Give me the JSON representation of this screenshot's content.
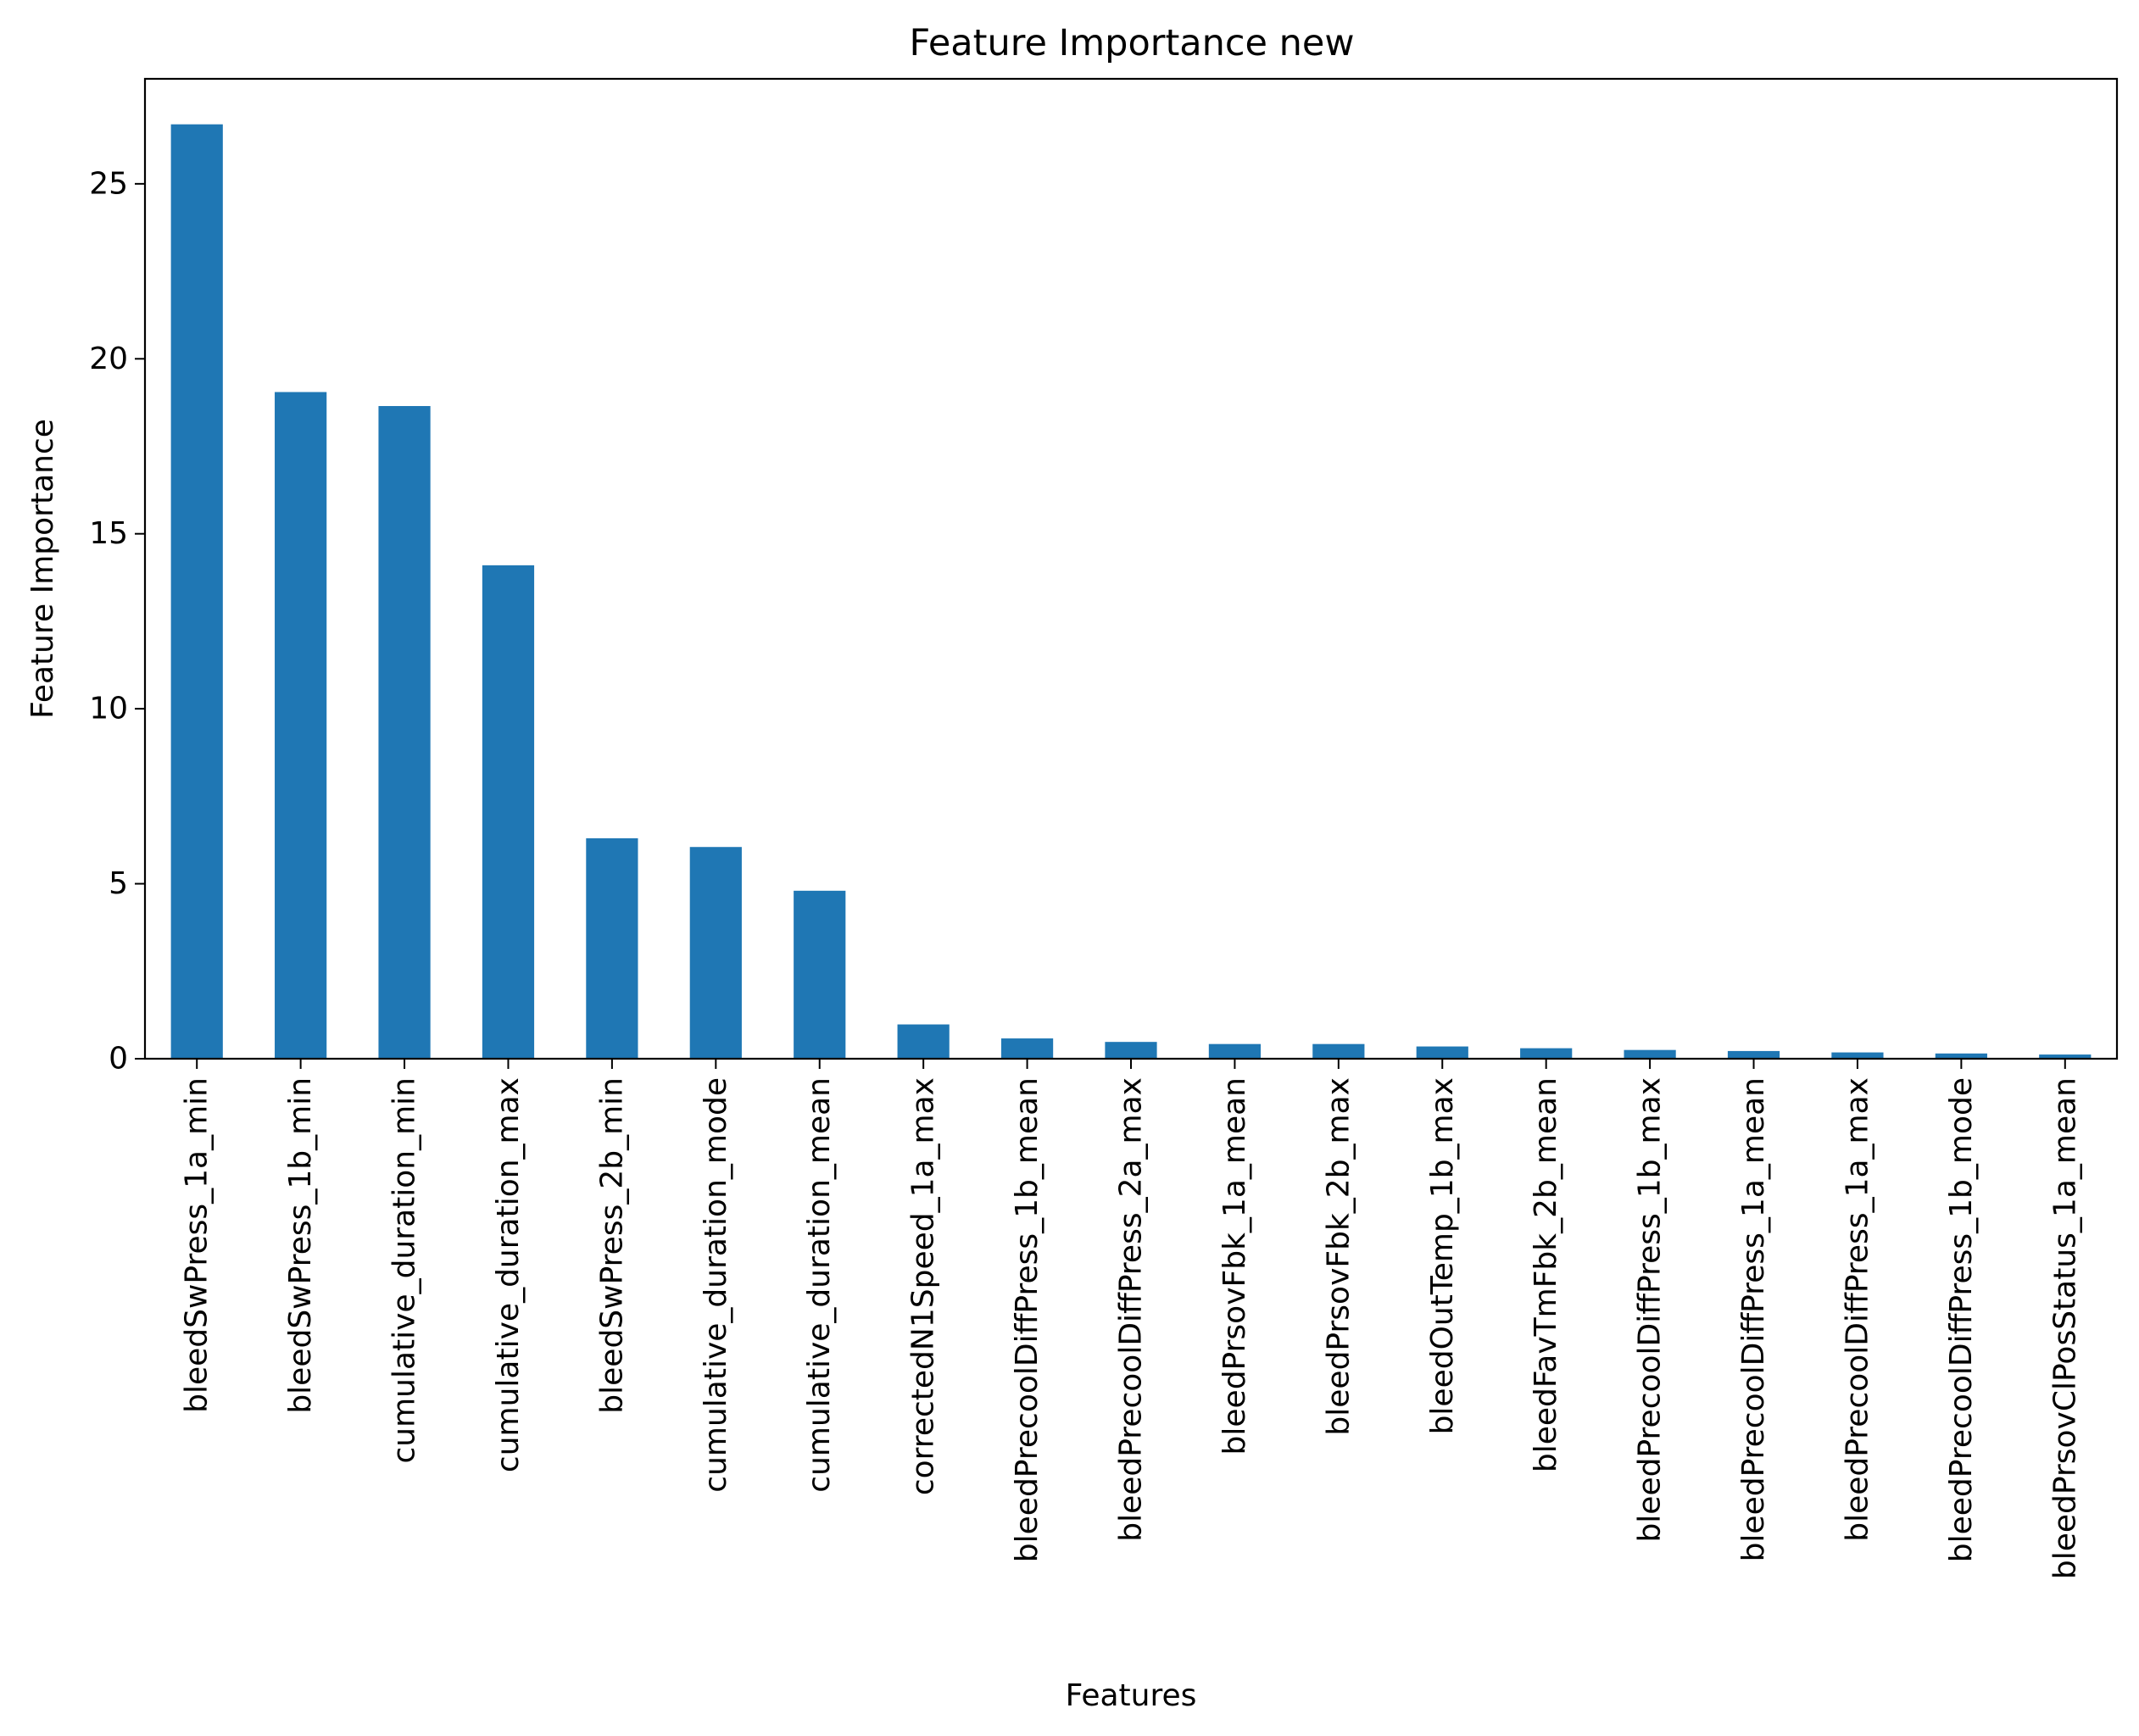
{
  "chart_data": {
    "type": "bar",
    "title": "Feature Importance new",
    "xlabel": "Features",
    "ylabel": "Feature Importance",
    "ylim": [
      0,
      28
    ],
    "yticks": [
      0,
      5,
      10,
      15,
      20,
      25
    ],
    "grid": false,
    "legend": "none",
    "bar_color": "#1f77b4",
    "categories": [
      "bleedSwPress_1a_min",
      "bleedSwPress_1b_min",
      "cumulative_duration_min",
      "cumulative_duration_max",
      "bleedSwPress_2b_min",
      "cumulative_duration_mode",
      "cumulative_duration_mean",
      "correctedN1Speed_1a_max",
      "bleedPrecoolDiffPress_1b_mean",
      "bleedPrecoolDiffPress_2a_max",
      "bleedPrsovFbk_1a_mean",
      "bleedPrsovFbk_2b_max",
      "bleedOutTemp_1b_max",
      "bleedFavTmFbk_2b_mean",
      "bleedPrecoolDiffPress_1b_max",
      "bleedPrecoolDiffPress_1a_mean",
      "bleedPrecoolDiffPress_1a_max",
      "bleedPrecoolDiffPress_1b_mode",
      "bleedPrsovClPosStatus_1a_mean"
    ],
    "values": [
      26.7,
      19.05,
      18.65,
      14.1,
      6.3,
      6.05,
      4.8,
      0.98,
      0.58,
      0.48,
      0.42,
      0.42,
      0.35,
      0.3,
      0.25,
      0.22,
      0.18,
      0.15,
      0.12
    ]
  }
}
